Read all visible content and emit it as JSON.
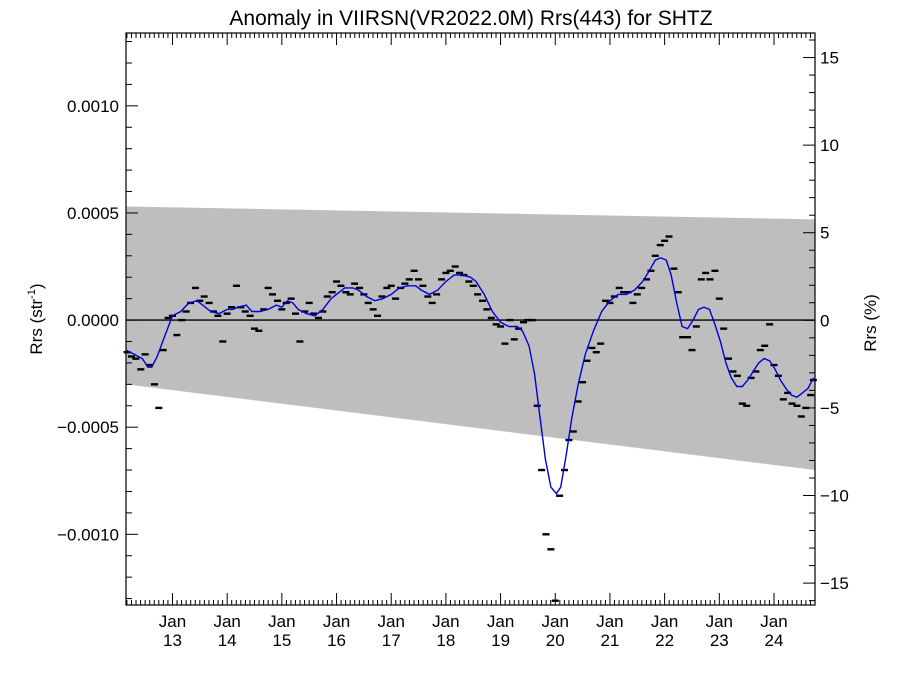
{
  "chart_data": {
    "type": "line",
    "title": "Anomaly in VIIRSN(VR2022.0M) Rrs(443) for SHTZ",
    "ylabel": "Rrs (str",
    "ylabel_sup": "-1",
    "ylabel_close": ")",
    "y2label": "Rrs (%)",
    "ylim": [
      -0.00133,
      0.00134
    ],
    "y2lim": [
      -16.25,
      16.4
    ],
    "yticks": [
      {
        "v": 0.001,
        "label": "0.0010"
      },
      {
        "v": 0.0005,
        "label": "0.0005"
      },
      {
        "v": 0.0,
        "label": "0.0000"
      },
      {
        "v": -0.0005,
        "label": "−0.0005"
      },
      {
        "v": -0.001,
        "label": "−0.0010"
      }
    ],
    "y2ticks": [
      {
        "v": 15,
        "label": "15"
      },
      {
        "v": 10,
        "label": "10"
      },
      {
        "v": 5,
        "label": "5"
      },
      {
        "v": 0,
        "label": "0"
      },
      {
        "v": -5,
        "label": "−5"
      },
      {
        "v": -10,
        "label": "−10"
      },
      {
        "v": -15,
        "label": "−15"
      }
    ],
    "xlim": [
      2012.15,
      2024.75
    ],
    "xticks": [
      {
        "v": 2013.0,
        "month": "Jan",
        "year": "13"
      },
      {
        "v": 2014.0,
        "month": "Jan",
        "year": "14"
      },
      {
        "v": 2015.0,
        "month": "Jan",
        "year": "15"
      },
      {
        "v": 2016.0,
        "month": "Jan",
        "year": "16"
      },
      {
        "v": 2017.0,
        "month": "Jan",
        "year": "17"
      },
      {
        "v": 2018.0,
        "month": "Jan",
        "year": "18"
      },
      {
        "v": 2019.0,
        "month": "Jan",
        "year": "19"
      },
      {
        "v": 2020.0,
        "month": "Jan",
        "year": "20"
      },
      {
        "v": 2021.0,
        "month": "Jan",
        "year": "21"
      },
      {
        "v": 2022.0,
        "month": "Jan",
        "year": "22"
      },
      {
        "v": 2023.0,
        "month": "Jan",
        "year": "23"
      },
      {
        "v": 2024.0,
        "month": "Jan",
        "year": "24"
      }
    ],
    "band": {
      "upper": [
        [
          2012.15,
          0.00053
        ],
        [
          2024.75,
          0.00047
        ]
      ],
      "lower": [
        [
          2012.15,
          -0.0003
        ],
        [
          2024.75,
          -0.0007
        ]
      ],
      "color": "#bebebe"
    },
    "zero_line": true,
    "series": [
      {
        "kind": "monthly",
        "color": "#000000",
        "points": [
          [
            2012.17,
            -0.00015
          ],
          [
            2012.25,
            -0.00017
          ],
          [
            2012.33,
            -0.00018
          ],
          [
            2012.42,
            -0.00023
          ],
          [
            2012.5,
            -0.00016
          ],
          [
            2012.58,
            -0.00021
          ],
          [
            2012.67,
            -0.0003
          ],
          [
            2012.75,
            -0.00041
          ],
          [
            2012.83,
            -0.00014
          ],
          [
            2012.92,
            1e-05
          ],
          [
            2013.0,
            2e-05
          ],
          [
            2013.08,
            -7e-05
          ],
          [
            2013.17,
            0.0
          ],
          [
            2013.25,
            4e-05
          ],
          [
            2013.33,
            8e-05
          ],
          [
            2013.42,
            0.00015
          ],
          [
            2013.5,
            9e-05
          ],
          [
            2013.58,
            0.00011
          ],
          [
            2013.67,
            8e-05
          ],
          [
            2013.75,
            4e-05
          ],
          [
            2013.83,
            2e-05
          ],
          [
            2013.92,
            -0.0001
          ],
          [
            2014.0,
            3e-05
          ],
          [
            2014.08,
            6e-05
          ],
          [
            2014.17,
            0.00016
          ],
          [
            2014.25,
            6e-05
          ],
          [
            2014.33,
            4e-05
          ],
          [
            2014.42,
            2e-05
          ],
          [
            2014.5,
            -4e-05
          ],
          [
            2014.58,
            -5e-05
          ],
          [
            2014.67,
            5e-05
          ],
          [
            2014.75,
            0.00015
          ],
          [
            2014.83,
            0.00012
          ],
          [
            2014.92,
            9e-05
          ],
          [
            2015.0,
            5e-05
          ],
          [
            2015.08,
            8e-05
          ],
          [
            2015.17,
            0.0001
          ],
          [
            2015.25,
            3e-05
          ],
          [
            2015.33,
            -0.0001
          ],
          [
            2015.42,
            4e-05
          ],
          [
            2015.5,
            8e-05
          ],
          [
            2015.58,
            3e-05
          ],
          [
            2015.67,
            1e-05
          ],
          [
            2015.75,
            4e-05
          ],
          [
            2015.83,
            0.00011
          ],
          [
            2015.92,
            0.00013
          ],
          [
            2016.0,
            0.00018
          ],
          [
            2016.08,
            0.00016
          ],
          [
            2016.17,
            0.00013
          ],
          [
            2016.25,
            0.00012
          ],
          [
            2016.33,
            0.00017
          ],
          [
            2016.42,
            0.00015
          ],
          [
            2016.5,
            0.00012
          ],
          [
            2016.58,
            8e-05
          ],
          [
            2016.67,
            5e-05
          ],
          [
            2016.75,
            2e-05
          ],
          [
            2016.83,
            0.00011
          ],
          [
            2016.92,
            0.00015
          ],
          [
            2017.0,
            0.00016
          ],
          [
            2017.08,
            0.0001
          ],
          [
            2017.17,
            0.00015
          ],
          [
            2017.25,
            0.00017
          ],
          [
            2017.33,
            0.00019
          ],
          [
            2017.42,
            0.00023
          ],
          [
            2017.5,
            0.00019
          ],
          [
            2017.58,
            0.00016
          ],
          [
            2017.67,
            0.00011
          ],
          [
            2017.75,
            8e-05
          ],
          [
            2017.83,
            0.00012
          ],
          [
            2017.92,
            0.00019
          ],
          [
            2018.0,
            0.00022
          ],
          [
            2018.08,
            0.00023
          ],
          [
            2018.17,
            0.00025
          ],
          [
            2018.25,
            0.00022
          ],
          [
            2018.33,
            0.00021
          ],
          [
            2018.42,
            0.00018
          ],
          [
            2018.5,
            0.00016
          ],
          [
            2018.58,
            0.00012
          ],
          [
            2018.67,
            9e-05
          ],
          [
            2018.75,
            5e-05
          ],
          [
            2018.83,
            1e-05
          ],
          [
            2018.92,
            -2e-05
          ],
          [
            2019.0,
            -3e-05
          ],
          [
            2019.08,
            -0.00011
          ],
          [
            2019.17,
            0.0
          ],
          [
            2019.25,
            -9e-05
          ],
          [
            2019.33,
            -4e-05
          ],
          [
            2019.42,
            -1e-05
          ],
          [
            2019.5,
            0.0
          ],
          [
            2019.58,
            0.0
          ],
          [
            2019.67,
            -0.0004
          ],
          [
            2019.75,
            -0.0007
          ],
          [
            2019.83,
            -0.001
          ],
          [
            2019.92,
            -0.00107
          ],
          [
            2020.0,
            -0.00131
          ],
          [
            2020.08,
            -0.00082
          ],
          [
            2020.17,
            -0.0007
          ],
          [
            2020.25,
            -0.00056
          ],
          [
            2020.33,
            -0.00052
          ],
          [
            2020.42,
            -0.00038
          ],
          [
            2020.5,
            -0.00029
          ],
          [
            2020.58,
            -0.00019
          ],
          [
            2020.67,
            -0.00013
          ],
          [
            2020.75,
            -0.00015
          ],
          [
            2020.83,
            -0.00011
          ],
          [
            2020.92,
            9e-05
          ],
          [
            2021.0,
            8e-05
          ],
          [
            2021.08,
            0.00011
          ],
          [
            2021.17,
            0.00015
          ],
          [
            2021.25,
            0.00013
          ],
          [
            2021.33,
            0.00013
          ],
          [
            2021.42,
            8e-05
          ],
          [
            2021.5,
            0.00012
          ],
          [
            2021.58,
            0.00015
          ],
          [
            2021.67,
            0.00019
          ],
          [
            2021.75,
            0.00023
          ],
          [
            2021.83,
            0.0003
          ],
          [
            2021.92,
            0.00035
          ],
          [
            2022.0,
            0.00037
          ],
          [
            2022.08,
            0.00039
          ],
          [
            2022.17,
            0.00024
          ],
          [
            2022.25,
            0.00013
          ],
          [
            2022.33,
            -8e-05
          ],
          [
            2022.42,
            -8e-05
          ],
          [
            2022.5,
            -0.00014
          ],
          [
            2022.58,
            -3e-05
          ],
          [
            2022.67,
            0.00019
          ],
          [
            2022.75,
            0.00022
          ],
          [
            2022.83,
            0.00019
          ],
          [
            2022.92,
            0.00023
          ],
          [
            2023.0,
            0.0001
          ],
          [
            2023.08,
            -4e-05
          ],
          [
            2023.17,
            -0.00018
          ],
          [
            2023.25,
            -0.00024
          ],
          [
            2023.33,
            -0.00026
          ],
          [
            2023.42,
            -0.00039
          ],
          [
            2023.5,
            -0.0004
          ],
          [
            2023.58,
            -0.00027
          ],
          [
            2023.67,
            -0.00024
          ],
          [
            2023.75,
            -0.00014
          ],
          [
            2023.83,
            -0.00012
          ],
          [
            2023.92,
            -2e-05
          ],
          [
            2024.0,
            -0.00021
          ],
          [
            2024.08,
            -0.00026
          ],
          [
            2024.17,
            -0.00037
          ],
          [
            2024.25,
            -0.00034
          ],
          [
            2024.33,
            -0.00039
          ],
          [
            2024.42,
            -0.0004
          ],
          [
            2024.5,
            -0.00045
          ],
          [
            2024.58,
            -0.00041
          ],
          [
            2024.67,
            -0.00035
          ],
          [
            2024.72,
            -0.00028
          ]
        ]
      },
      {
        "kind": "smoothed",
        "color": "#0000dd",
        "points": [
          [
            2012.15,
            -0.00014
          ],
          [
            2012.3,
            -0.00016
          ],
          [
            2012.45,
            -0.00018
          ],
          [
            2012.55,
            -0.00022
          ],
          [
            2012.62,
            -0.00022
          ],
          [
            2012.72,
            -0.00017
          ],
          [
            2012.85,
            -8e-05
          ],
          [
            2013.0,
            2e-05
          ],
          [
            2013.15,
            4e-05
          ],
          [
            2013.3,
            8e-05
          ],
          [
            2013.45,
            9e-05
          ],
          [
            2013.55,
            7e-05
          ],
          [
            2013.7,
            4e-05
          ],
          [
            2013.85,
            3e-05
          ],
          [
            2014.0,
            5e-05
          ],
          [
            2014.1,
            5e-05
          ],
          [
            2014.2,
            6e-05
          ],
          [
            2014.35,
            7e-05
          ],
          [
            2014.45,
            4e-05
          ],
          [
            2014.6,
            4e-05
          ],
          [
            2014.75,
            5e-05
          ],
          [
            2014.9,
            7e-05
          ],
          [
            2015.0,
            6e-05
          ],
          [
            2015.1,
            9e-05
          ],
          [
            2015.2,
            8e-05
          ],
          [
            2015.3,
            5e-05
          ],
          [
            2015.45,
            3e-05
          ],
          [
            2015.6,
            2e-05
          ],
          [
            2015.75,
            5e-05
          ],
          [
            2015.9,
            0.0001
          ],
          [
            2016.05,
            0.00013
          ],
          [
            2016.15,
            0.00015
          ],
          [
            2016.3,
            0.00015
          ],
          [
            2016.4,
            0.00014
          ],
          [
            2016.55,
            0.00011
          ],
          [
            2016.7,
            9e-05
          ],
          [
            2016.85,
            0.0001
          ],
          [
            2017.0,
            0.00012
          ],
          [
            2017.15,
            0.00015
          ],
          [
            2017.3,
            0.00016
          ],
          [
            2017.45,
            0.00016
          ],
          [
            2017.55,
            0.00014
          ],
          [
            2017.7,
            0.00012
          ],
          [
            2017.85,
            0.00014
          ],
          [
            2018.0,
            0.00018
          ],
          [
            2018.15,
            0.00021
          ],
          [
            2018.3,
            0.00021
          ],
          [
            2018.45,
            0.0002
          ],
          [
            2018.55,
            0.00018
          ],
          [
            2018.7,
            0.00012
          ],
          [
            2018.85,
            4e-05
          ],
          [
            2019.0,
            -1e-05
          ],
          [
            2019.15,
            -3e-05
          ],
          [
            2019.3,
            -3e-05
          ],
          [
            2019.4,
            -5e-05
          ],
          [
            2019.52,
            -0.00012
          ],
          [
            2019.62,
            -0.00025
          ],
          [
            2019.72,
            -0.00045
          ],
          [
            2019.82,
            -0.00065
          ],
          [
            2019.92,
            -0.00078
          ],
          [
            2020.02,
            -0.00081
          ],
          [
            2020.1,
            -0.00078
          ],
          [
            2020.2,
            -0.00063
          ],
          [
            2020.3,
            -0.00046
          ],
          [
            2020.42,
            -0.0003
          ],
          [
            2020.55,
            -0.00016
          ],
          [
            2020.7,
            -5e-05
          ],
          [
            2020.85,
            4e-05
          ],
          [
            2021.0,
            9e-05
          ],
          [
            2021.15,
            0.00012
          ],
          [
            2021.3,
            0.00012
          ],
          [
            2021.45,
            0.00014
          ],
          [
            2021.6,
            0.00018
          ],
          [
            2021.72,
            0.00023
          ],
          [
            2021.83,
            0.00028
          ],
          [
            2021.93,
            0.00029
          ],
          [
            2022.03,
            0.00028
          ],
          [
            2022.12,
            0.00021
          ],
          [
            2022.22,
            8e-05
          ],
          [
            2022.32,
            -3e-05
          ],
          [
            2022.42,
            -4e-05
          ],
          [
            2022.52,
            0.0
          ],
          [
            2022.62,
            5e-05
          ],
          [
            2022.72,
            6e-05
          ],
          [
            2022.82,
            5e-05
          ],
          [
            2022.92,
            -2e-05
          ],
          [
            2023.02,
            -0.0001
          ],
          [
            2023.12,
            -0.0002
          ],
          [
            2023.22,
            -0.00027
          ],
          [
            2023.32,
            -0.00031
          ],
          [
            2023.42,
            -0.00031
          ],
          [
            2023.52,
            -0.00028
          ],
          [
            2023.62,
            -0.00024
          ],
          [
            2023.72,
            -0.0002
          ],
          [
            2023.82,
            -0.00018
          ],
          [
            2023.92,
            -0.00019
          ],
          [
            2024.02,
            -0.00023
          ],
          [
            2024.12,
            -0.00028
          ],
          [
            2024.22,
            -0.00032
          ],
          [
            2024.32,
            -0.00035
          ],
          [
            2024.42,
            -0.00036
          ],
          [
            2024.52,
            -0.00034
          ],
          [
            2024.62,
            -0.00032
          ],
          [
            2024.72,
            -0.00027
          ]
        ]
      }
    ]
  }
}
